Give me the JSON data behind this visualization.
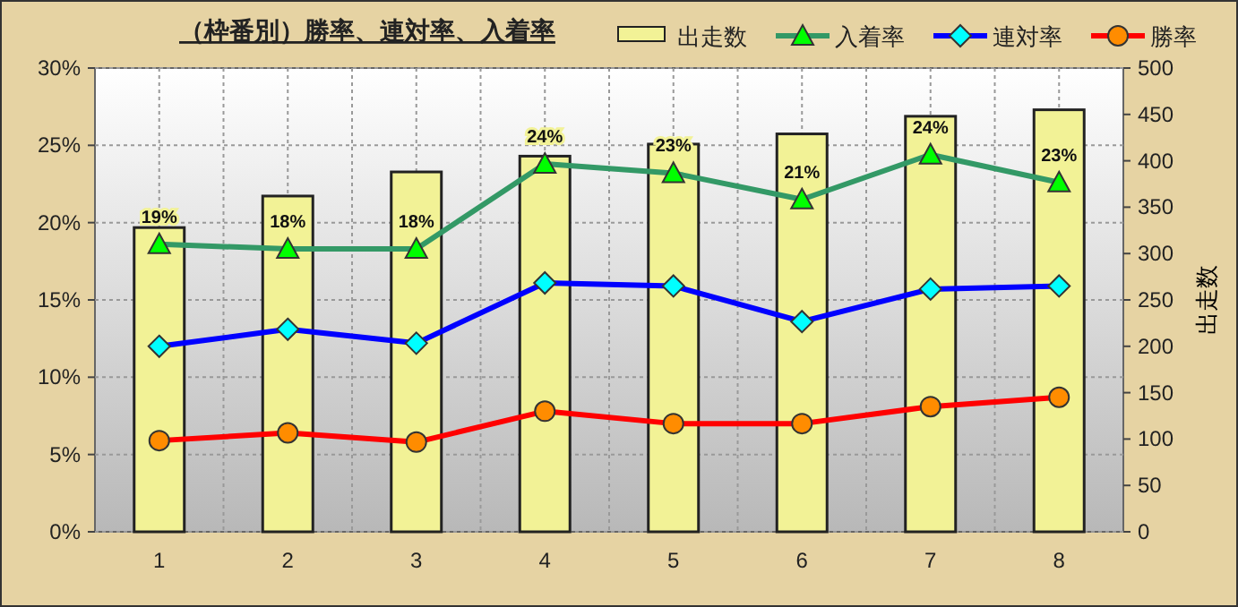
{
  "chart_data": {
    "type": "line",
    "title": "（枠番別）勝率、連対率、入着率",
    "categories": [
      "1",
      "2",
      "3",
      "4",
      "5",
      "6",
      "7",
      "8"
    ],
    "ylim": [
      0,
      30
    ],
    "yticks": [
      {
        "value": 0,
        "label": "0%"
      },
      {
        "value": 5,
        "label": "5%"
      },
      {
        "value": 10,
        "label": "10%"
      },
      {
        "value": 15,
        "label": "15%"
      },
      {
        "value": 20,
        "label": "20%"
      },
      {
        "value": 25,
        "label": "25%"
      },
      {
        "value": 30,
        "label": "30%"
      }
    ],
    "y2lim": [
      0,
      500
    ],
    "y2ticks": [
      0,
      50,
      100,
      150,
      200,
      250,
      300,
      350,
      400,
      450,
      500
    ],
    "y2label": "出走数",
    "grid": true,
    "legend": "top right",
    "series": [
      {
        "name": "出走数",
        "type": "bar",
        "axis": "y2",
        "color": "#f2f296",
        "values": [
          328,
          362,
          388,
          405,
          418,
          429,
          448,
          455
        ]
      },
      {
        "name": "入着率",
        "color": "#339966",
        "marker": "triangle",
        "colors": [
          "#00ff00",
          "#00ff00",
          "#00ff00",
          "#00ff00",
          "#00ff00",
          "#00ff00",
          "#00ff00",
          "#00ff00"
        ],
        "values": [
          18.6,
          18.3,
          18.3,
          23.8,
          23.2,
          21.5,
          24.4,
          22.6
        ],
        "value_labels": [
          "19%",
          "18%",
          "18%",
          "24%",
          "23%",
          "21%",
          "24%",
          "23%"
        ]
      },
      {
        "name": "連対率",
        "color": "#0000ff",
        "marker": "diamond",
        "colors": [
          "#00ffff",
          "#00ffff",
          "#00ffff",
          "#00ffff",
          "#00ffff",
          "#00ffff",
          "#00ffff",
          "#00ffff"
        ],
        "values": [
          12.0,
          13.1,
          12.2,
          16.1,
          15.9,
          13.6,
          15.7,
          15.9
        ]
      },
      {
        "name": "勝率",
        "color": "#ff0000",
        "marker": "circle",
        "colors": [
          "#ff8c00",
          "#ff8c00",
          "#ff8c00",
          "#ff8c00",
          "#ff8c00",
          "#ff8c00",
          "#ff8c00",
          "#ff8c00"
        ],
        "values": [
          5.9,
          6.4,
          5.8,
          7.8,
          7.0,
          7.0,
          8.1,
          8.7
        ]
      }
    ]
  }
}
